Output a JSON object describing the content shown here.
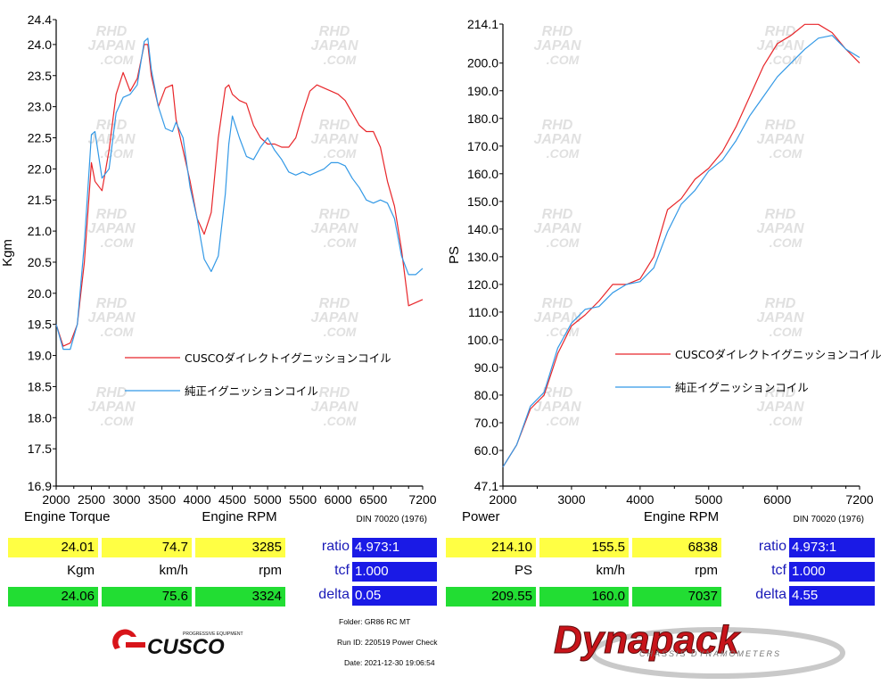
{
  "left": {
    "ylabel": "Kgm",
    "xlabel": "Engine RPM",
    "title": "Engine Torque",
    "din": "DIN 70020 (1976)",
    "yticks": [
      "24.4",
      "24.0",
      "23.5",
      "23.0",
      "22.5",
      "22.0",
      "21.5",
      "21.0",
      "20.5",
      "20.0",
      "19.5",
      "19.0",
      "18.5",
      "18.0",
      "17.5",
      "16.9"
    ],
    "xticks": [
      "2000",
      "2500",
      "3000",
      "3500",
      "4000",
      "4500",
      "5000",
      "5500",
      "6000",
      "6500",
      "7200"
    ],
    "legend": [
      "CUSCOダイレクトイグニッションコイル",
      "純正イグニッションコイル"
    ],
    "row1": [
      "24.01",
      "74.7",
      "3285"
    ],
    "units": [
      "Kgm",
      "km/h",
      "rpm"
    ],
    "row2": [
      "24.06",
      "75.6",
      "3324"
    ],
    "labels": [
      "ratio",
      "tcf",
      "delta"
    ],
    "vals": [
      "4.973:1",
      "1.000",
      "0.05"
    ]
  },
  "right": {
    "ylabel": "PS",
    "xlabel": "Engine RPM",
    "title": "Power",
    "din": "DIN 70020 (1976)",
    "yticks": [
      "214.1",
      "200.0",
      "190.0",
      "180.0",
      "170.0",
      "160.0",
      "150.0",
      "140.0",
      "130.0",
      "120.0",
      "110.0",
      "100.0",
      "90.0",
      "80.0",
      "70.0",
      "60.0",
      "47.1"
    ],
    "xticks": [
      "2000",
      "3000",
      "4000",
      "5000",
      "6000",
      "7200"
    ],
    "legend": [
      "CUSCOダイレクトイグニッションコイル",
      "純正イグニッションコイル"
    ],
    "row1": [
      "214.10",
      "155.5",
      "6838"
    ],
    "units": [
      "PS",
      "km/h",
      "rpm"
    ],
    "row2": [
      "209.55",
      "160.0",
      "7037"
    ],
    "labels": [
      "ratio",
      "tcf",
      "delta"
    ],
    "vals": [
      "4.973:1",
      "1.000",
      "4.55"
    ]
  },
  "info": {
    "folder": "Folder:  GR86 RC MT",
    "run": "Run ID:  220519 Power Check",
    "date": "Date:  2021-12-30 19:06:54"
  },
  "logos": {
    "cusco": "CUSCO",
    "cusco_tag": "PROGRESSIVE EQUIPMENT",
    "dynapack": "Dynapack",
    "dyna_tag": "CHASSIS DYNAMOMETERS"
  },
  "watermark": [
    "RHD",
    "JAPAN",
    ".COM"
  ],
  "colors": {
    "cusco": "#e8262a",
    "stock": "#3399e6",
    "brand_red": "#d8141a",
    "brand_blue": "#1a1ae6"
  },
  "chart_data": [
    {
      "type": "line",
      "title": "Engine Torque",
      "xlabel": "Engine RPM",
      "ylabel": "Kgm",
      "xlim": [
        2000,
        7200
      ],
      "ylim": [
        16.9,
        24.4
      ],
      "series": [
        {
          "name": "CUSCOダイレクトイグニッションコイル",
          "x": [
            2000,
            2100,
            2200,
            2300,
            2400,
            2500,
            2550,
            2650,
            2750,
            2850,
            2950,
            3050,
            3150,
            3250,
            3300,
            3350,
            3450,
            3550,
            3650,
            3700,
            3800,
            3900,
            4000,
            4100,
            4200,
            4300,
            4400,
            4450,
            4500,
            4600,
            4700,
            4800,
            4900,
            5000,
            5100,
            5200,
            5300,
            5400,
            5500,
            5600,
            5700,
            5800,
            5900,
            6000,
            6100,
            6200,
            6300,
            6400,
            6500,
            6600,
            6700,
            6800,
            6900,
            7000,
            7100,
            7200
          ],
          "y": [
            19.5,
            19.15,
            19.2,
            19.5,
            20.5,
            22.1,
            21.8,
            21.65,
            22.3,
            23.2,
            23.55,
            23.25,
            23.45,
            24.0,
            24.0,
            23.5,
            23.0,
            23.3,
            23.35,
            22.8,
            22.3,
            21.8,
            21.2,
            20.95,
            21.3,
            22.5,
            23.3,
            23.35,
            23.2,
            23.1,
            23.05,
            22.7,
            22.5,
            22.4,
            22.4,
            22.35,
            22.35,
            22.5,
            22.9,
            23.25,
            23.35,
            23.3,
            23.25,
            23.2,
            23.1,
            22.9,
            22.7,
            22.6,
            22.6,
            22.35,
            21.8,
            21.4,
            20.7,
            19.8,
            19.85,
            19.9
          ]
        },
        {
          "name": "純正イグニッションコイル",
          "x": [
            2000,
            2100,
            2200,
            2300,
            2400,
            2500,
            2550,
            2650,
            2750,
            2850,
            2950,
            3050,
            3150,
            3250,
            3300,
            3350,
            3450,
            3550,
            3650,
            3700,
            3800,
            3900,
            4000,
            4100,
            4200,
            4300,
            4400,
            4450,
            4500,
            4600,
            4700,
            4800,
            4900,
            5000,
            5100,
            5200,
            5300,
            5400,
            5500,
            5600,
            5700,
            5800,
            5900,
            6000,
            6100,
            6200,
            6300,
            6400,
            6500,
            6600,
            6700,
            6800,
            6900,
            7000,
            7100,
            7200
          ],
          "y": [
            19.5,
            19.1,
            19.1,
            19.5,
            20.8,
            22.55,
            22.6,
            21.85,
            22.0,
            22.9,
            23.15,
            23.2,
            23.35,
            24.05,
            24.1,
            23.6,
            23.0,
            22.65,
            22.6,
            22.75,
            22.5,
            21.7,
            21.2,
            20.55,
            20.35,
            20.6,
            21.6,
            22.4,
            22.85,
            22.5,
            22.2,
            22.15,
            22.35,
            22.5,
            22.3,
            22.15,
            21.95,
            21.9,
            21.95,
            21.9,
            21.95,
            22.0,
            22.1,
            22.1,
            22.05,
            21.85,
            21.7,
            21.5,
            21.45,
            21.5,
            21.45,
            21.2,
            20.6,
            20.3,
            20.3,
            20.4
          ]
        }
      ],
      "legend": "right-middle"
    },
    {
      "type": "line",
      "title": "Power",
      "xlabel": "Engine RPM",
      "ylabel": "PS",
      "xlim": [
        2000,
        7200
      ],
      "ylim": [
        47.1,
        214.1
      ],
      "series": [
        {
          "name": "CUSCOダイレクトイグニッションコイル",
          "x": [
            2000,
            2200,
            2400,
            2600,
            2800,
            3000,
            3200,
            3400,
            3600,
            3800,
            4000,
            4200,
            4400,
            4600,
            4800,
            5000,
            5200,
            5400,
            5600,
            5800,
            6000,
            6200,
            6400,
            6600,
            6800,
            7000,
            7200
          ],
          "y": [
            54,
            62,
            75,
            80,
            95,
            105,
            109,
            114,
            120,
            120,
            122,
            130,
            147,
            151,
            158,
            162,
            168,
            177,
            188,
            199,
            207,
            210,
            214,
            214,
            211,
            205,
            200
          ]
        },
        {
          "name": "純正イグニッションコイル",
          "x": [
            2000,
            2200,
            2400,
            2600,
            2800,
            3000,
            3200,
            3400,
            3600,
            3800,
            4000,
            4200,
            4400,
            4600,
            4800,
            5000,
            5200,
            5400,
            5600,
            5800,
            6000,
            6200,
            6400,
            6600,
            6800,
            7000,
            7200
          ],
          "y": [
            54,
            62,
            76,
            81,
            97,
            106,
            111,
            112,
            117,
            120,
            121,
            126,
            139,
            149,
            154,
            161,
            165,
            172,
            181,
            188,
            195,
            200,
            205,
            209,
            210,
            205,
            202
          ]
        }
      ],
      "legend": "right-middle"
    }
  ]
}
